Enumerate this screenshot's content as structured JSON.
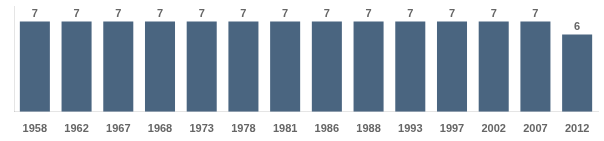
{
  "chart_data": {
    "type": "bar",
    "categories": [
      "1958",
      "1962",
      "1967",
      "1968",
      "1973",
      "1978",
      "1981",
      "1986",
      "1988",
      "1993",
      "1997",
      "2002",
      "2007",
      "2012"
    ],
    "values": [
      7,
      7,
      7,
      7,
      7,
      7,
      7,
      7,
      7,
      7,
      7,
      7,
      7,
      6
    ],
    "color": "#4a6580",
    "ylim": [
      0,
      8.2
    ],
    "grid": false,
    "data_labels": true,
    "tick_labels": "x"
  }
}
